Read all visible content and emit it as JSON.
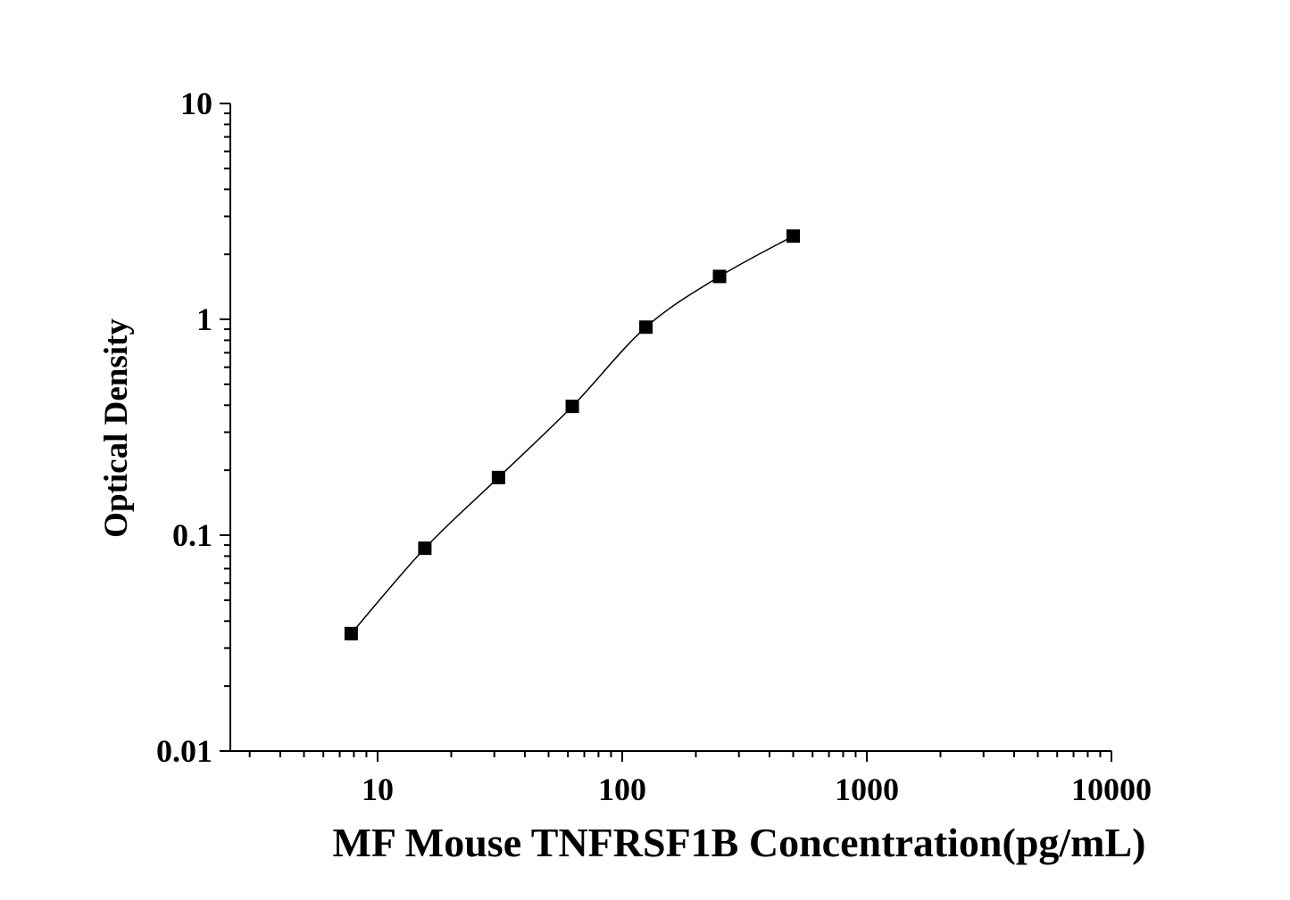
{
  "chart_data": {
    "type": "scatter",
    "title": "",
    "xlabel": "MF Mouse TNFRSF1B Concentration(pg/mL)",
    "ylabel": "Optical Density",
    "x_scale": "log",
    "y_scale": "log",
    "xlim": [
      2.5,
      10000
    ],
    "ylim": [
      0.01,
      10
    ],
    "x_ticks": [
      10,
      100,
      1000,
      10000
    ],
    "x_tick_labels": [
      "10",
      "100",
      "1000",
      "10000"
    ],
    "y_ticks": [
      0.01,
      0.1,
      1,
      10
    ],
    "y_tick_labels": [
      "0.01",
      "0.1",
      "1",
      "10"
    ],
    "grid": false,
    "legend": "none",
    "marker": "square",
    "marker_color": "#000000",
    "line_color": "#000000",
    "series": [
      {
        "x": [
          7.8,
          15.6,
          31.2,
          62.5,
          125,
          250,
          500
        ],
        "y": [
          0.035,
          0.087,
          0.185,
          0.395,
          0.92,
          1.58,
          2.43
        ]
      }
    ]
  }
}
